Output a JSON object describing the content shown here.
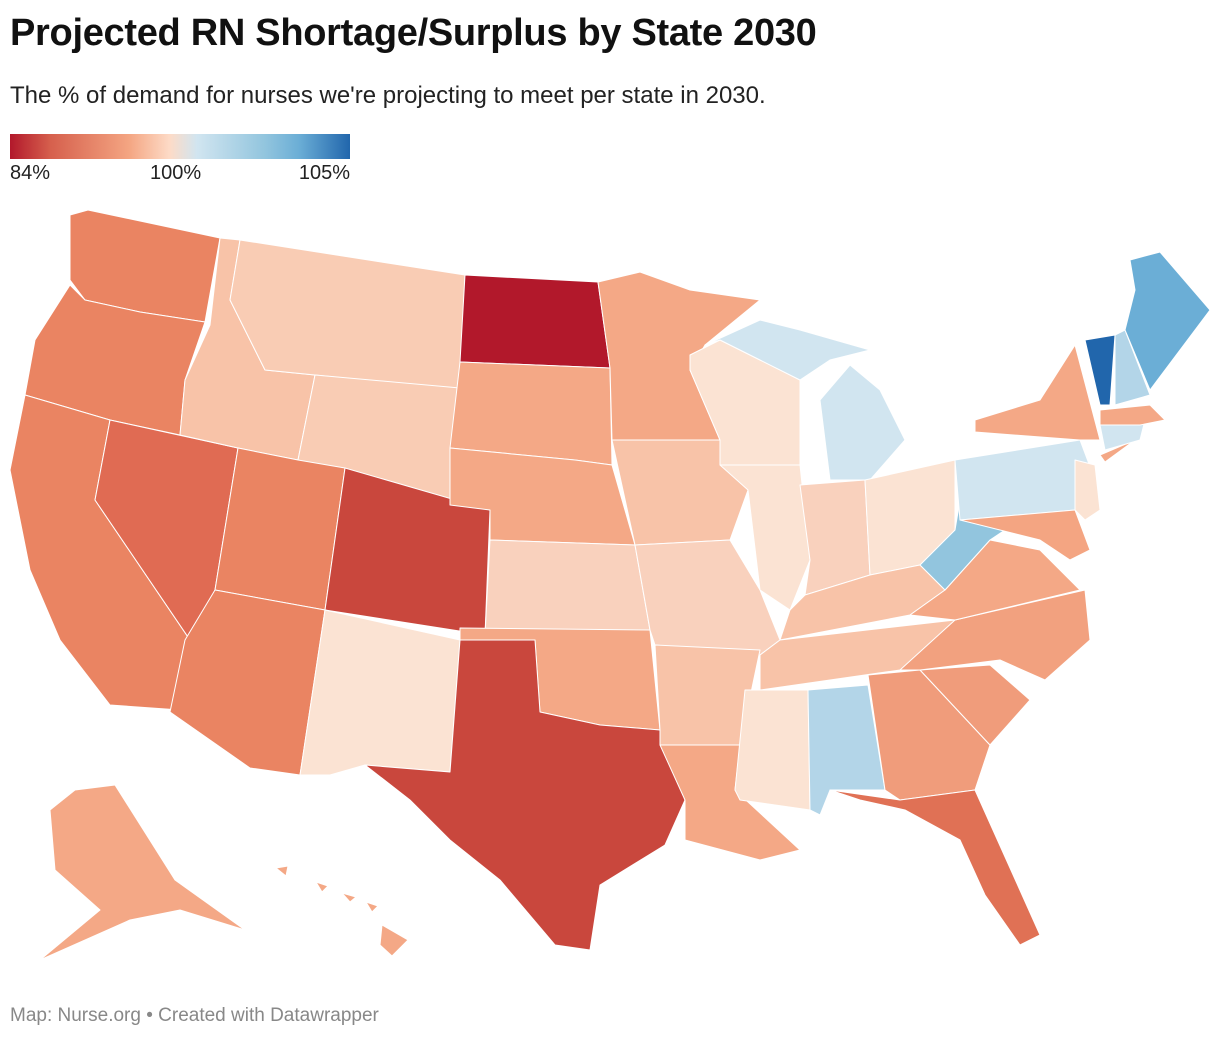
{
  "header": {
    "title": "Projected RN Shortage/Surplus by State 2030",
    "subtitle": "The % of demand for nurses we're projecting to meet per state in 2030."
  },
  "legend": {
    "min_label": "84%",
    "mid_label": "100%",
    "max_label": "105%",
    "colors": [
      "#b2182b",
      "#f4a582",
      "#fddbc7",
      "#d1e5f0",
      "#2166ac"
    ]
  },
  "footer": {
    "text": "Map: Nurse.org • Created with Datawrapper"
  },
  "map": {
    "state_colors": {
      "WA": "#ea8462",
      "OR": "#ea8462",
      "CA": "#ea8462",
      "NV": "#e06b53",
      "ID": "#f8c3a8",
      "MT": "#f9ccb4",
      "WY": "#f9ccb4",
      "UT": "#ea8462",
      "AZ": "#ea8462",
      "CO": "#c9473d",
      "NM": "#fbe3d3",
      "ND": "#b2182b",
      "SD": "#f4a886",
      "NE": "#f4a886",
      "KS": "#f9d1bd",
      "OK": "#f4a886",
      "TX": "#c9473d",
      "MN": "#f4a886",
      "IA": "#f8c3a8",
      "MO": "#f9d1bd",
      "AR": "#f8c3a8",
      "LA": "#f4a886",
      "WI": "#fbe3d3",
      "IL": "#fbe3d3",
      "MI": "#d1e5f0",
      "IN": "#f9d1bd",
      "OH": "#fbe3d3",
      "KY": "#f8c3a8",
      "TN": "#f8c3a8",
      "MS": "#fbe3d3",
      "AL": "#b3d5e8",
      "GA": "#f09c7b",
      "FL": "#e07155",
      "SC": "#f09c7b",
      "NC": "#f2a17f",
      "VA": "#f4a886",
      "WV": "#92c5de",
      "PA": "#d1e5f0",
      "NY": "#f4a886",
      "NJ": "#fbe3d3",
      "MD": "#f4a582",
      "CT": "#d1e5f0",
      "MA": "#f4a886",
      "VT": "#2166ac",
      "NH": "#b3d5e8",
      "ME": "#6baed6",
      "AK": "#f4a886",
      "HI": "#f4a886"
    }
  }
}
